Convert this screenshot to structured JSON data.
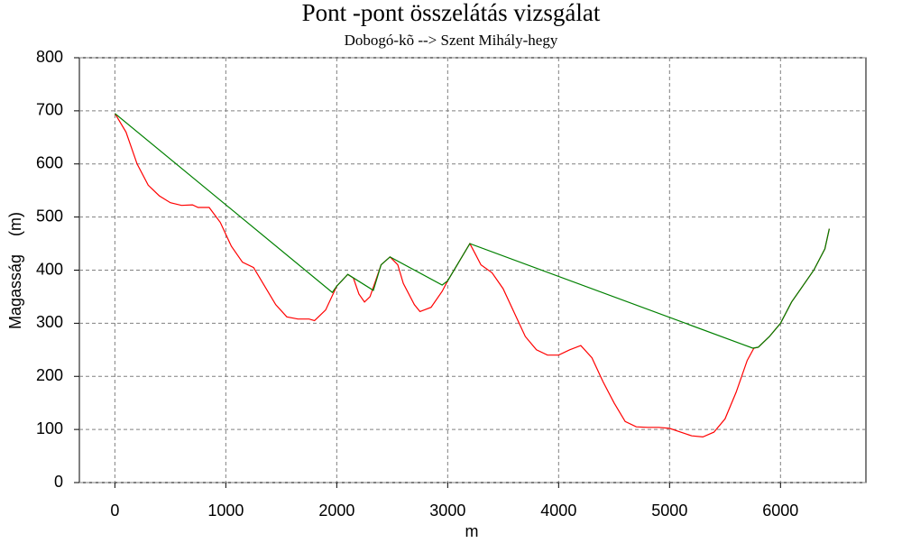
{
  "chart_data": {
    "type": "line",
    "title": "Pont -pont összelátás vizsgálat",
    "subtitle": "Dobogó-kõ --> Szent Mihály-hegy",
    "x_label": "m",
    "y_label": "Magasság    (m)",
    "xlim": [
      -320,
      6770
    ],
    "ylim": [
      0,
      800
    ],
    "xticks": [
      0,
      1000,
      2000,
      3000,
      4000,
      5000,
      6000
    ],
    "yticks": [
      0,
      100,
      200,
      300,
      400,
      500,
      600,
      700,
      800
    ],
    "grid": true,
    "series": [
      {
        "color": "#ff0000",
        "x": [
          0,
          100,
          200,
          300,
          400,
          500,
          600,
          700,
          750,
          850,
          950,
          1050,
          1150,
          1250,
          1350,
          1450,
          1550,
          1650,
          1750,
          1800,
          1900,
          2000,
          2100,
          2150,
          2200,
          2250,
          2300,
          2350,
          2400,
          2480,
          2550,
          2600,
          2700,
          2750,
          2850,
          2950,
          3000,
          3100,
          3200,
          3250,
          3300,
          3400,
          3500,
          3600,
          3700,
          3800,
          3900,
          4000,
          4100,
          4200,
          4300,
          4400,
          4500,
          4600,
          4700,
          4800,
          4900,
          5000,
          5100,
          5200,
          5300,
          5400,
          5500,
          5600,
          5700,
          5760,
          5800,
          5900,
          6000,
          6100,
          6200,
          6300,
          6400,
          6440
        ],
        "values": [
          695,
          660,
          600,
          560,
          540,
          527,
          522,
          523,
          518,
          518,
          490,
          445,
          415,
          405,
          370,
          335,
          312,
          308,
          308,
          305,
          325,
          370,
          392,
          385,
          355,
          340,
          350,
          380,
          410,
          425,
          410,
          375,
          335,
          322,
          330,
          360,
          380,
          415,
          450,
          430,
          410,
          395,
          365,
          320,
          275,
          250,
          240,
          240,
          250,
          258,
          235,
          190,
          150,
          115,
          105,
          104,
          104,
          102,
          95,
          88,
          86,
          95,
          120,
          170,
          230,
          253,
          255,
          275,
          300,
          340,
          370,
          400,
          440,
          478
        ]
      },
      {
        "color": "#008000",
        "x": [
          0,
          1960,
          2000,
          2100,
          2330,
          2400,
          2480,
          2950,
          3000,
          3100,
          3200,
          5750,
          5800,
          5900,
          6000,
          6100,
          6200,
          6300,
          6400,
          6440
        ],
        "values": [
          695,
          358,
          370,
          392,
          362,
          410,
          425,
          372,
          380,
          415,
          450,
          253,
          255,
          275,
          300,
          340,
          370,
          400,
          440,
          478
        ]
      }
    ]
  }
}
